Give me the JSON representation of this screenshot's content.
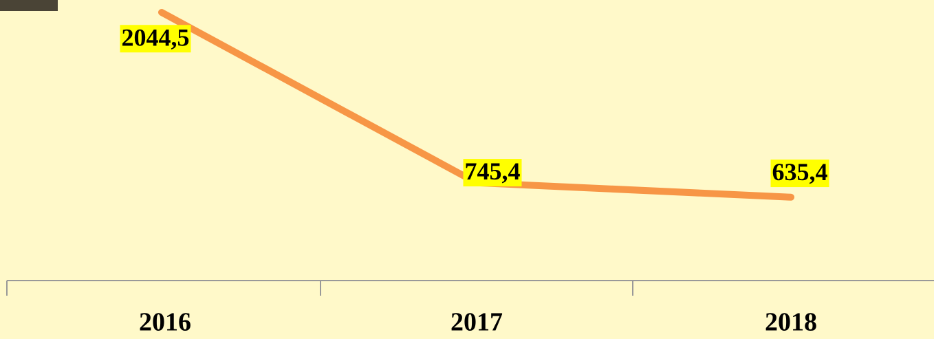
{
  "chart_data": {
    "type": "line",
    "categories": [
      "2016",
      "2017",
      "2018"
    ],
    "series": [
      {
        "name": null,
        "color": "#f79646",
        "values": [
          2044.5,
          745.4,
          635.4
        ],
        "value_labels": [
          "2044,5",
          "745,4",
          "635,4"
        ]
      }
    ],
    "label_background": "#ffff00"
  }
}
